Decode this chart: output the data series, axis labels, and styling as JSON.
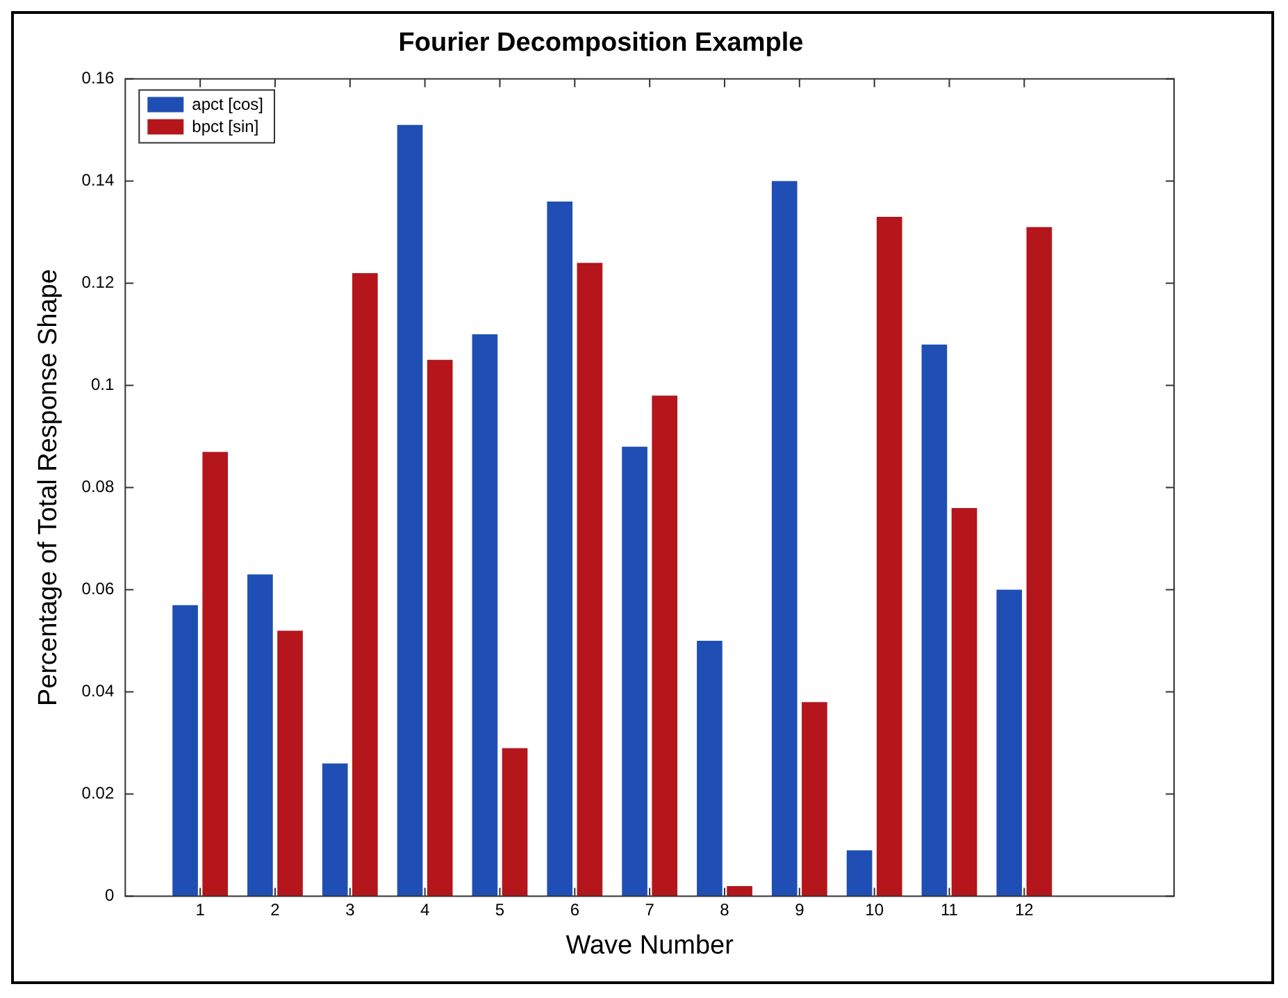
{
  "chart_data": {
    "type": "bar",
    "title": "Fourier Decomposition Example",
    "xlabel": "Wave Number",
    "ylabel": "Percentage of Total Response Shape",
    "x": [
      1,
      2,
      3,
      4,
      5,
      6,
      7,
      8,
      9,
      10,
      11,
      12
    ],
    "series": [
      {
        "name": "apct [cos]",
        "color": "#1f4fb4",
        "values": [
          0.057,
          0.063,
          0.026,
          0.151,
          0.11,
          0.136,
          0.088,
          0.05,
          0.14,
          0.009,
          0.108,
          0.06
        ]
      },
      {
        "name": "bpct [sin]",
        "color": "#b4161b",
        "values": [
          0.087,
          0.052,
          0.122,
          0.105,
          0.029,
          0.124,
          0.098,
          0.002,
          0.038,
          0.133,
          0.076,
          0.131
        ]
      }
    ],
    "xlim": [
      0,
      14
    ],
    "xticks": [
      1,
      2,
      3,
      4,
      5,
      6,
      7,
      8,
      9,
      10,
      11,
      12
    ],
    "ylim": [
      0,
      0.16
    ],
    "yticks": [
      0,
      0.02,
      0.04,
      0.06,
      0.08,
      0.1,
      0.12,
      0.14,
      0.16
    ],
    "grid": false,
    "legend": "top left"
  }
}
